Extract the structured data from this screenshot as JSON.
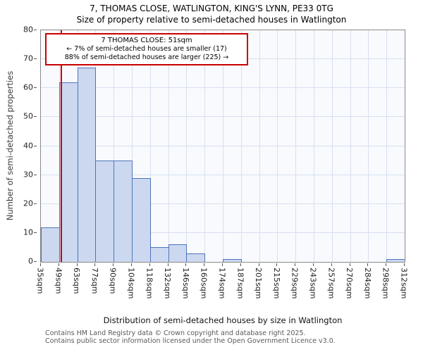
{
  "title": "7, THOMAS CLOSE, WATLINGTON, KING'S LYNN, PE33 0TG",
  "subtitle": "Size of property relative to semi-detached houses in Watlington",
  "annotation": {
    "line1": "7 THOMAS CLOSE: 51sqm",
    "line2": "← 7% of semi-detached houses are smaller (17)",
    "line3": "88% of semi-detached houses are larger (225) →"
  },
  "chart_data": {
    "type": "bar",
    "title": "Size of property relative to semi-detached houses in Watlington",
    "xlabel": "Distribution of semi-detached houses by size in Watlington",
    "ylabel": "Number of semi-detached properties",
    "ylim": [
      0,
      80
    ],
    "ytick_step": 10,
    "grid": true,
    "bin_labels": [
      "35sqm",
      "49sqm",
      "63sqm",
      "77sqm",
      "90sqm",
      "104sqm",
      "118sqm",
      "132sqm",
      "146sqm",
      "160sqm",
      "174sqm",
      "187sqm",
      "201sqm",
      "215sqm",
      "229sqm",
      "243sqm",
      "257sqm",
      "270sqm",
      "284sqm",
      "298sqm",
      "312sqm"
    ],
    "values": [
      12,
      62,
      67,
      35,
      35,
      29,
      5,
      6,
      3,
      0,
      1,
      0,
      0,
      0,
      0,
      0,
      0,
      0,
      0,
      1
    ],
    "marker": {
      "label": "7 THOMAS CLOSE",
      "value_sqm": 51,
      "color": "#cc0000"
    },
    "colors": {
      "bar_fill": "#ccd8f0",
      "bar_edge": "#4d74bd",
      "grid": "#d8e0ef",
      "plot_bg": "#f8fafd"
    }
  },
  "footer": {
    "line1": "Contains HM Land Registry data © Crown copyright and database right 2025.",
    "line2": "Contains public sector information licensed under the Open Government Licence v3.0."
  }
}
